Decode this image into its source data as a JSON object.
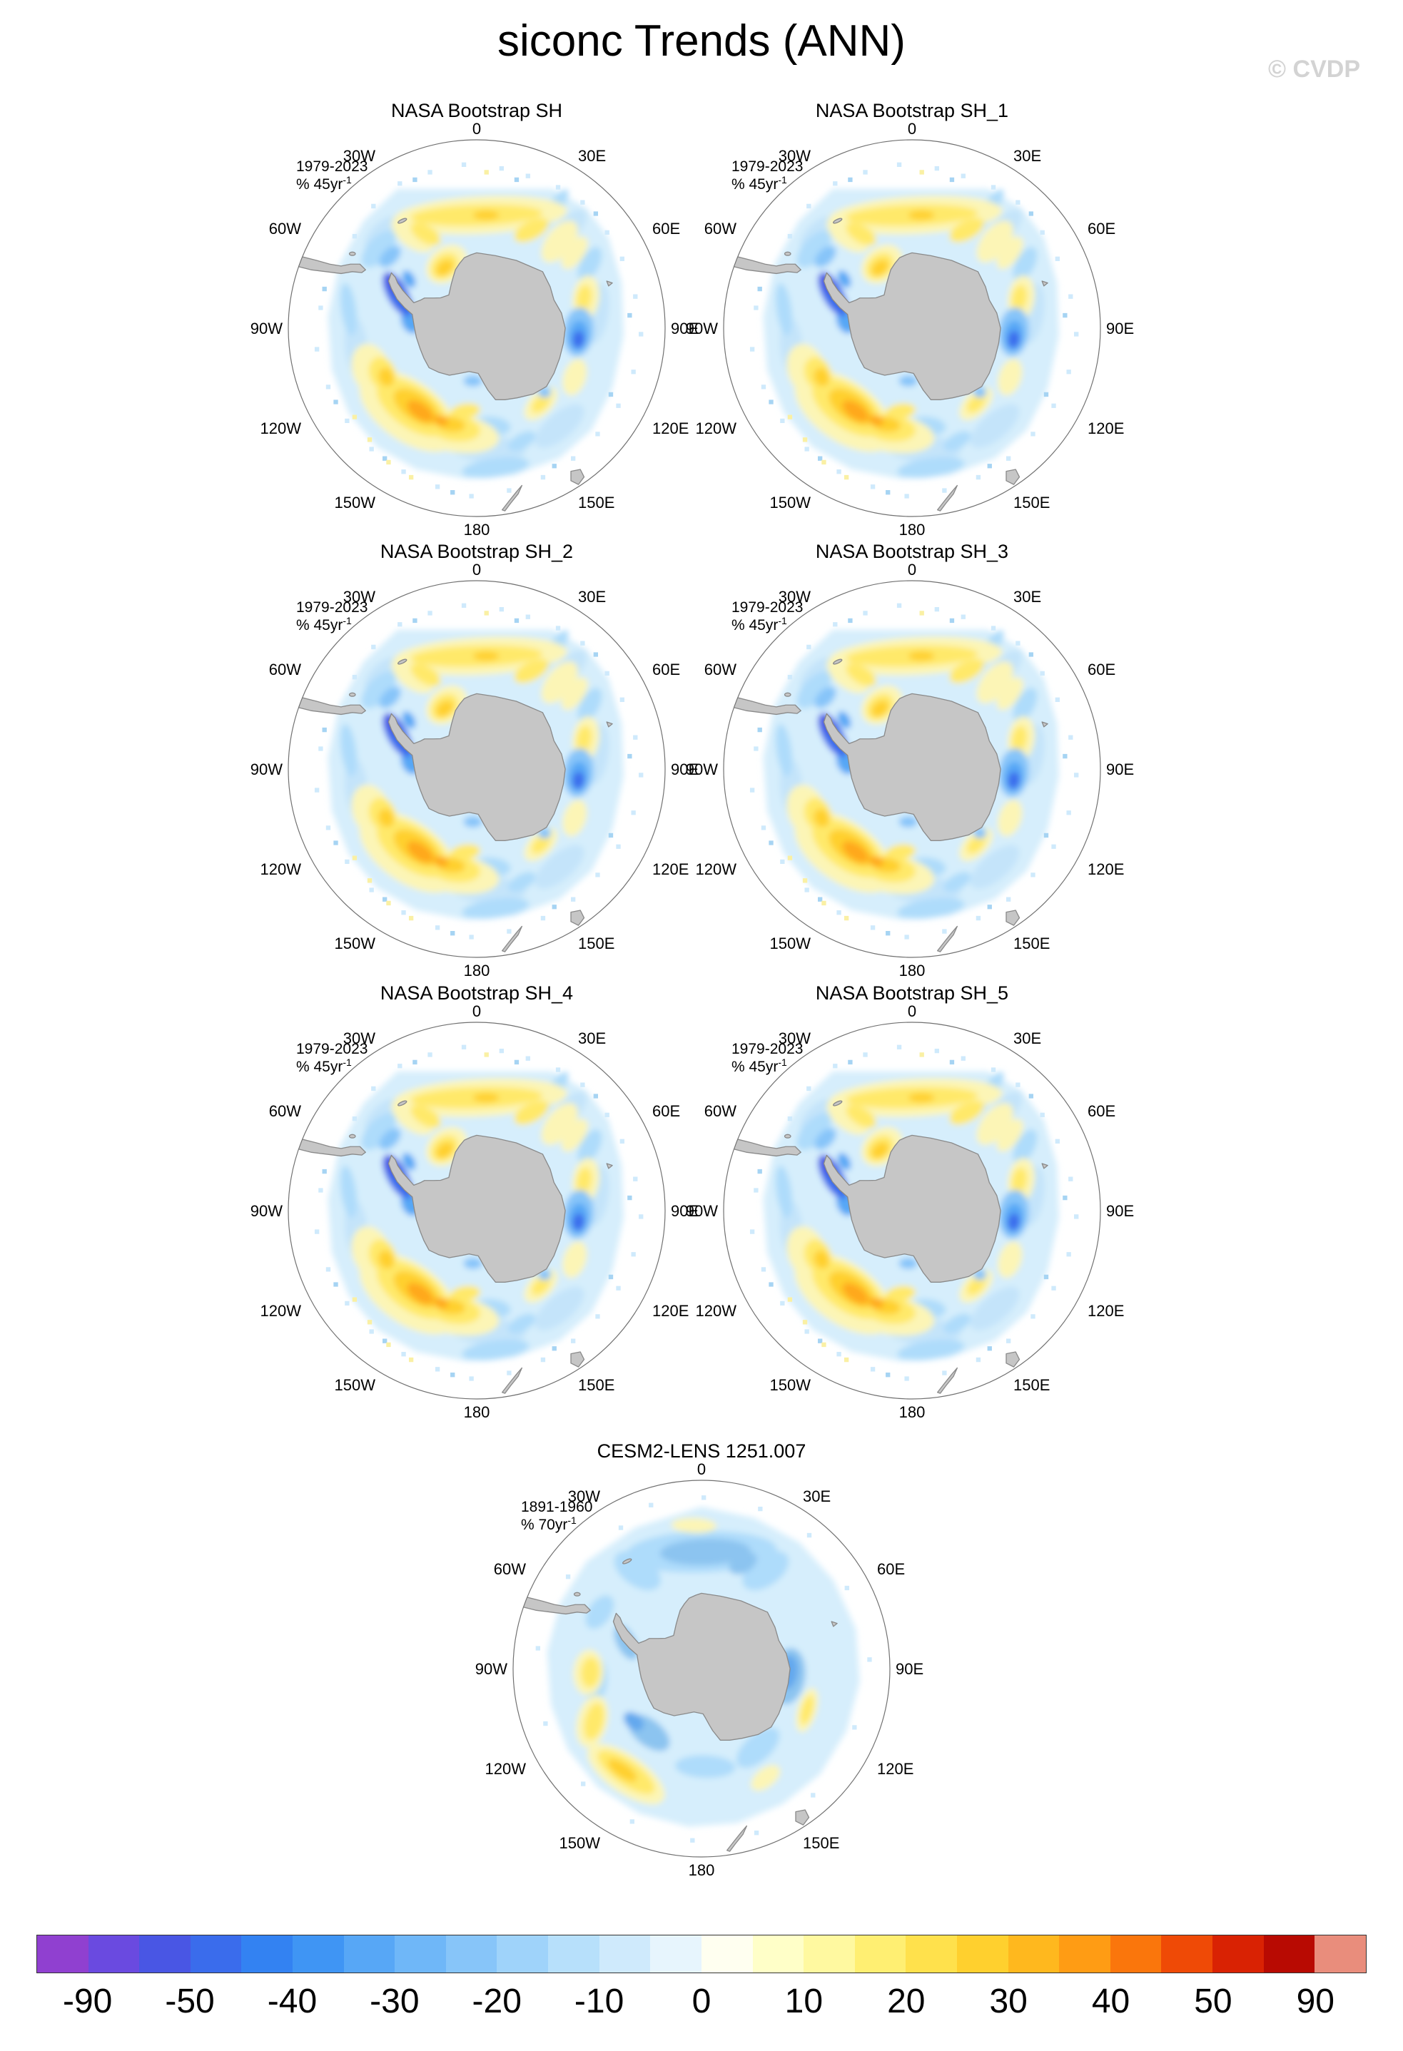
{
  "watermark": "© CVDP",
  "chart_data": {
    "type": "heatmap",
    "subtype": "south-polar-stereographic-trend-maps",
    "title": "siconc Trends (ANN)",
    "variable": "sea ice concentration trend",
    "layout": "6 observational panels (2 columns x 3 rows) + 1 model panel centered below + shared horizontal colorbar",
    "panels": [
      {
        "title": "NASA Bootstrap SH",
        "period": "1979-2023",
        "units_base": "% 45yr",
        "units_exp": "-1",
        "map": "nasa"
      },
      {
        "title": "NASA Bootstrap SH_1",
        "period": "1979-2023",
        "units_base": "% 45yr",
        "units_exp": "-1",
        "map": "nasa"
      },
      {
        "title": "NASA Bootstrap SH_2",
        "period": "1979-2023",
        "units_base": "% 45yr",
        "units_exp": "-1",
        "map": "nasa"
      },
      {
        "title": "NASA Bootstrap SH_3",
        "period": "1979-2023",
        "units_base": "% 45yr",
        "units_exp": "-1",
        "map": "nasa"
      },
      {
        "title": "NASA Bootstrap SH_4",
        "period": "1979-2023",
        "units_base": "% 45yr",
        "units_exp": "-1",
        "map": "nasa"
      },
      {
        "title": "NASA Bootstrap SH_5",
        "period": "1979-2023",
        "units_base": "% 45yr",
        "units_exp": "-1",
        "map": "nasa"
      },
      {
        "title": "CESM2-LENS 1251.007",
        "period": "1891-1960",
        "units_base": "% 70yr",
        "units_exp": "-1",
        "map": "cesm"
      }
    ],
    "map": {
      "projection": "south polar stereographic, pole centered, Antarctica gray",
      "lon_labels": [
        "0",
        "30E",
        "60E",
        "90E",
        "120E",
        "150E",
        "180",
        "150W",
        "120W",
        "90W",
        "60W",
        "30W"
      ]
    },
    "qualitative_pattern": {
      "nasa_panels": "weak negative (pale blue) trends over most of the ice zone; strong negative (dark blue) near Antarctic Peninsula/Bellingshausen Sea and near 90E; positive (yellow-orange) band in Ross/Amundsen sector (120W-180) and along 0-30E band north of Dronning Maud Land; yellow patch in inner Weddell Sea",
      "cesm_panel": "weaker, smoother trends: light-to-medium blue around most of East Antarctica and top of domain; yellow bands in far southeast Pacific / lower-left sector and west (90W-60W) at the ice edge"
    },
    "colorbar": {
      "orientation": "horizontal",
      "ticks": [
        "-90",
        "-50",
        "-40",
        "-30",
        "-20",
        "-10",
        "0",
        "10",
        "20",
        "30",
        "40",
        "50",
        "90"
      ],
      "colors": [
        "#9040d0",
        "#6a4ae0",
        "#4956e4",
        "#3a6cec",
        "#3382f2",
        "#3f95f4",
        "#57a7f6",
        "#6fb7f8",
        "#87c5f9",
        "#9fd3fa",
        "#b7e0fb",
        "#cfeafc",
        "#e7f5fd",
        "#fffff0",
        "#ffffc8",
        "#fff9a0",
        "#ffef72",
        "#ffe14c",
        "#ffd02e",
        "#ffb81e",
        "#ff9c14",
        "#fa760c",
        "#ef4a06",
        "#d92203",
        "#b80a02",
        "#e98d7c"
      ]
    }
  }
}
